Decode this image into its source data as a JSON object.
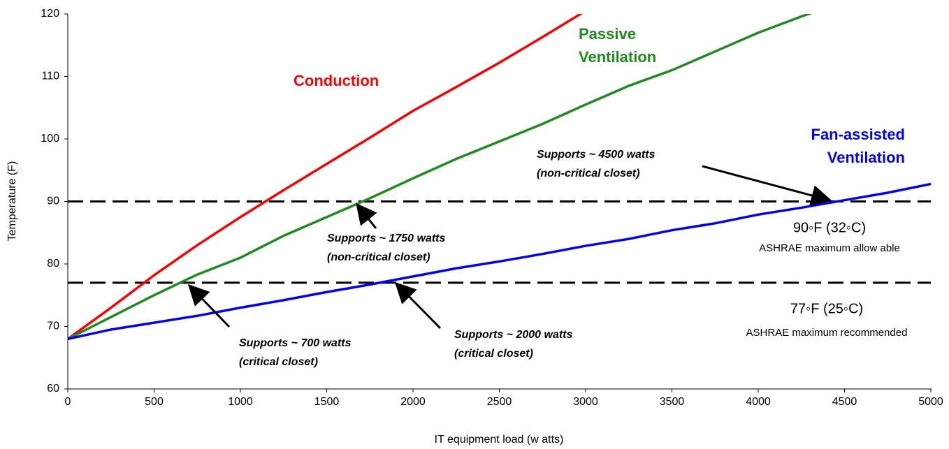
{
  "chart_data": {
    "type": "line",
    "xlabel": "IT equipment load (w atts)",
    "ylabel": "Temperature (F)",
    "x": [
      0,
      250,
      500,
      750,
      1000,
      1250,
      1500,
      1750,
      2000,
      2250,
      2500,
      2750,
      3000,
      3250,
      3500,
      3750,
      4000,
      4250,
      4500,
      4750,
      5000
    ],
    "series": [
      {
        "name": "Conduction",
        "color": "#ff0000",
        "values": [
          68,
          73,
          78.2,
          83,
          87.5,
          91.8,
          96,
          100.2,
          104.5,
          108.3,
          112.2,
          116.3,
          120.5,
          null,
          null,
          null,
          null,
          null,
          null,
          null,
          null
        ]
      },
      {
        "name": "Passive Ventilation",
        "color": "#1e8c1e",
        "values": [
          68,
          71.5,
          75,
          78.3,
          81,
          84.5,
          87.5,
          90.5,
          93.7,
          96.8,
          99.6,
          102.4,
          105.5,
          108.5,
          111,
          114,
          117,
          119.6,
          122,
          null,
          null
        ]
      },
      {
        "name": "Fan-assisted Ventilation",
        "color": "#0000ff",
        "values": [
          68,
          69.5,
          70.6,
          71.7,
          73,
          74.2,
          75.5,
          76.7,
          78,
          79.3,
          80.4,
          81.6,
          82.9,
          84,
          85.4,
          86.5,
          87.9,
          89,
          90.2,
          91.4,
          92.8
        ]
      }
    ],
    "reference_lines": [
      {
        "value": 90,
        "label": "90◦F (32◦C)",
        "note": "ASHRAE maximum allow able"
      },
      {
        "value": 77,
        "label": "77◦F (25◦C)",
        "note": "ASHRAE maximum recommended"
      }
    ],
    "annotations": [
      {
        "lines": [
          "Supports ~ 4500 watts",
          "(non-critical closet)"
        ]
      },
      {
        "lines": [
          "Supports ~ 1750 watts",
          "(non-critical closet)"
        ]
      },
      {
        "lines": [
          "Supports ~ 700 watts",
          "(critical closet)"
        ]
      },
      {
        "lines": [
          "Supports ~ 2000 watts",
          "(critical closet)"
        ]
      }
    ],
    "xlim": [
      0,
      5000
    ],
    "xticks": [
      0,
      500,
      1000,
      1500,
      2000,
      2500,
      3000,
      3500,
      4000,
      4500,
      5000
    ],
    "ylim": [
      60,
      120
    ],
    "yticks": [
      60,
      70,
      80,
      90,
      100,
      110,
      120
    ]
  }
}
